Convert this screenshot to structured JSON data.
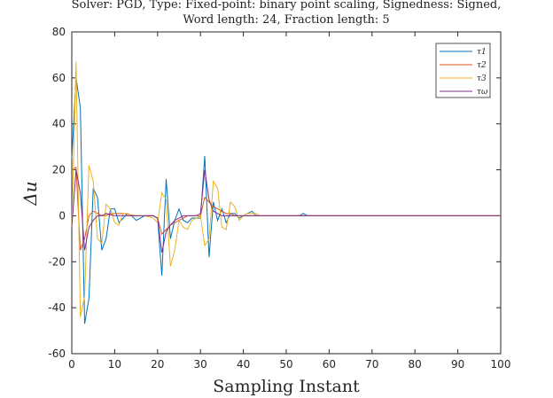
{
  "chart_data": {
    "type": "line",
    "title_lines": [
      "Solver: PGD, Type: Fixed-point: binary point scaling, Signedness: Signed,",
      "Word length: 24, Fraction length: 5"
    ],
    "xlabel": "Sampling Instant",
    "ylabel": "Δu",
    "xlim": [
      0,
      100
    ],
    "ylim": [
      -60,
      80
    ],
    "xticks": [
      0,
      10,
      20,
      30,
      40,
      50,
      60,
      70,
      80,
      90,
      100
    ],
    "yticks": [
      -60,
      -40,
      -20,
      0,
      20,
      40,
      60,
      80
    ],
    "grid": false,
    "legend_position": "top-right",
    "series": [
      {
        "name": "τ1",
        "legend_label": "τ1",
        "color": "#0072BD",
        "points": [
          [
            0,
            25
          ],
          [
            1,
            60
          ],
          [
            2,
            47
          ],
          [
            3,
            -47
          ],
          [
            4,
            -36
          ],
          [
            5,
            12
          ],
          [
            6,
            8
          ],
          [
            7,
            -15
          ],
          [
            8,
            -10
          ],
          [
            9,
            3
          ],
          [
            10,
            3
          ],
          [
            11,
            -3
          ],
          [
            12,
            -1
          ],
          [
            13,
            1
          ],
          [
            14,
            0
          ],
          [
            15,
            -2
          ],
          [
            16,
            -1
          ],
          [
            17,
            0
          ],
          [
            18,
            0
          ],
          [
            19,
            0
          ],
          [
            20,
            -1
          ],
          [
            21,
            -26
          ],
          [
            22,
            16
          ],
          [
            23,
            -10
          ],
          [
            24,
            -2
          ],
          [
            25,
            3
          ],
          [
            26,
            -2
          ],
          [
            27,
            -3
          ],
          [
            28,
            -1
          ],
          [
            29,
            -1
          ],
          [
            30,
            -1
          ],
          [
            31,
            26
          ],
          [
            32,
            -18
          ],
          [
            33,
            6
          ],
          [
            34,
            -2
          ],
          [
            35,
            3
          ],
          [
            36,
            -3
          ],
          [
            37,
            1
          ],
          [
            38,
            1
          ],
          [
            39,
            -1
          ],
          [
            40,
            0
          ],
          [
            41,
            1
          ],
          [
            42,
            2
          ],
          [
            43,
            0
          ],
          [
            44,
            0
          ],
          [
            45,
            0
          ],
          [
            46,
            0
          ],
          [
            47,
            0
          ],
          [
            48,
            0
          ],
          [
            50,
            0
          ],
          [
            53,
            0
          ],
          [
            54,
            1
          ],
          [
            55,
            0
          ],
          [
            60,
            0
          ],
          [
            100,
            0
          ]
        ]
      },
      {
        "name": "τ2",
        "legend_label": "τ2",
        "color": "#D95319",
        "points": [
          [
            0,
            20
          ],
          [
            1,
            21
          ],
          [
            2,
            -15
          ],
          [
            3,
            -10
          ],
          [
            4,
            0
          ],
          [
            5,
            2
          ],
          [
            6,
            1
          ],
          [
            7,
            0
          ],
          [
            8,
            0
          ],
          [
            9,
            1
          ],
          [
            10,
            1
          ],
          [
            12,
            1
          ],
          [
            15,
            0
          ],
          [
            19,
            0
          ],
          [
            20,
            -1
          ],
          [
            21,
            -8
          ],
          [
            22,
            -6
          ],
          [
            23,
            -4
          ],
          [
            24,
            -3
          ],
          [
            25,
            -2
          ],
          [
            26,
            -1
          ],
          [
            27,
            0
          ],
          [
            28,
            0
          ],
          [
            29,
            0
          ],
          [
            30,
            0
          ],
          [
            31,
            8
          ],
          [
            32,
            6
          ],
          [
            33,
            4
          ],
          [
            34,
            3
          ],
          [
            35,
            2
          ],
          [
            36,
            1
          ],
          [
            37,
            1
          ],
          [
            38,
            0
          ],
          [
            40,
            0
          ],
          [
            100,
            0
          ]
        ]
      },
      {
        "name": "τ3",
        "legend_label": "τ3",
        "color": "#EDB120",
        "points": [
          [
            0,
            -5
          ],
          [
            1,
            67
          ],
          [
            2,
            -44
          ],
          [
            3,
            -35
          ],
          [
            4,
            22
          ],
          [
            5,
            15
          ],
          [
            6,
            -10
          ],
          [
            7,
            -12
          ],
          [
            8,
            5
          ],
          [
            9,
            3
          ],
          [
            10,
            -3
          ],
          [
            11,
            -4
          ],
          [
            12,
            1
          ],
          [
            13,
            1
          ],
          [
            14,
            0
          ],
          [
            15,
            0
          ],
          [
            17,
            0
          ],
          [
            19,
            -1
          ],
          [
            20,
            -3
          ],
          [
            21,
            10
          ],
          [
            22,
            7
          ],
          [
            23,
            -22
          ],
          [
            24,
            -15
          ],
          [
            25,
            -2
          ],
          [
            26,
            -5
          ],
          [
            27,
            -6
          ],
          [
            28,
            -2
          ],
          [
            29,
            -1
          ],
          [
            30,
            0
          ],
          [
            31,
            -13
          ],
          [
            32,
            -10
          ],
          [
            33,
            15
          ],
          [
            34,
            12
          ],
          [
            35,
            -5
          ],
          [
            36,
            -6
          ],
          [
            37,
            6
          ],
          [
            38,
            4
          ],
          [
            39,
            -2
          ],
          [
            40,
            0
          ],
          [
            41,
            1
          ],
          [
            42,
            1
          ],
          [
            43,
            1
          ],
          [
            44,
            0
          ],
          [
            45,
            0
          ],
          [
            46,
            0
          ],
          [
            47,
            0
          ],
          [
            50,
            0
          ],
          [
            100,
            0
          ]
        ]
      },
      {
        "name": "τω",
        "legend_label": "τω",
        "color": "#7E2F8E",
        "points": [
          [
            0,
            -5
          ],
          [
            1,
            20
          ],
          [
            2,
            10
          ],
          [
            3,
            -15
          ],
          [
            4,
            -5
          ],
          [
            5,
            -2
          ],
          [
            6,
            0
          ],
          [
            7,
            0
          ],
          [
            8,
            1
          ],
          [
            10,
            0
          ],
          [
            19,
            0
          ],
          [
            20,
            -1
          ],
          [
            21,
            -16
          ],
          [
            22,
            -7
          ],
          [
            23,
            -4
          ],
          [
            24,
            -2
          ],
          [
            25,
            -1
          ],
          [
            26,
            0
          ],
          [
            29,
            0
          ],
          [
            30,
            1
          ],
          [
            31,
            20
          ],
          [
            32,
            7
          ],
          [
            33,
            2
          ],
          [
            34,
            1
          ],
          [
            35,
            0
          ],
          [
            100,
            0
          ]
        ]
      }
    ]
  }
}
